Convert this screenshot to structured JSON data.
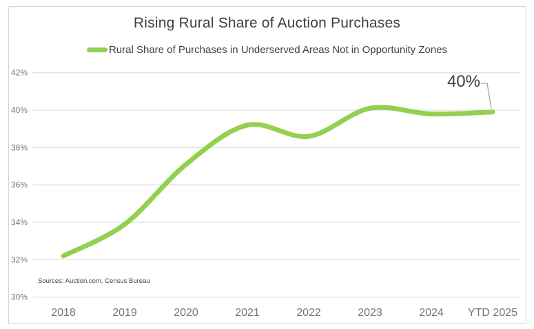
{
  "chart": {
    "title": "Rising Rural Share of Auction Purchases",
    "legend_label": "Rural Share of Purchases in Underserved Areas Not in Opportunity Zones",
    "sources": "Sources: Auction.com, Census Bureau",
    "annotation": "40%"
  },
  "colors": {
    "line": "#92D050",
    "title_text": "#404040",
    "axis_text": "#757575",
    "gridline": "#D9D9D9",
    "callout": "#A6A6A6",
    "border": "#D4D4D4"
  },
  "chart_data": {
    "type": "line",
    "title": "Rising Rural Share of Auction Purchases",
    "categories": [
      "2018",
      "2019",
      "2020",
      "2021",
      "2022",
      "2023",
      "2024",
      "YTD 2025"
    ],
    "series": [
      {
        "name": "Rural Share of Purchases in Underserved Areas Not in Opportunity Zones",
        "values": [
          32.2,
          33.9,
          37.1,
          39.2,
          38.6,
          40.1,
          39.8,
          39.9
        ]
      }
    ],
    "ytick_labels": [
      "30%",
      "32%",
      "34%",
      "36%",
      "38%",
      "40%",
      "42%"
    ],
    "ylim": [
      30,
      42
    ],
    "ytick_step": 2,
    "xlabel": "",
    "ylabel": "",
    "grid": true,
    "legend_position": "top",
    "end_annotation": {
      "text": "40%",
      "target_category": "YTD 2025",
      "target_value": 39.9
    }
  }
}
